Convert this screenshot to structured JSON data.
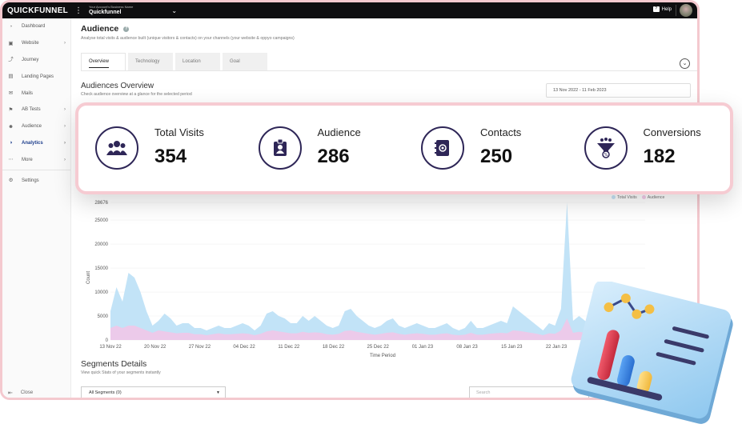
{
  "topbar": {
    "brand": "QUICKFUNNEL",
    "account_label": "Your Account's Business Name",
    "account_name": "Quickfunnel",
    "help_label": "Help"
  },
  "sidebar": {
    "items": [
      {
        "label": "Dashboard",
        "icon": "dashboard-icon",
        "chevron": false
      },
      {
        "label": "Website",
        "icon": "website-icon",
        "chevron": true
      },
      {
        "label": "Journey",
        "icon": "journey-icon",
        "chevron": false
      },
      {
        "label": "Landing Pages",
        "icon": "landing-pages-icon",
        "chevron": false
      },
      {
        "label": "Mails",
        "icon": "mail-icon",
        "chevron": false
      },
      {
        "label": "AB Tests",
        "icon": "ab-tests-icon",
        "chevron": true
      },
      {
        "label": "Audience",
        "icon": "audience-icon",
        "chevron": true
      },
      {
        "label": "Analytics",
        "icon": "analytics-icon",
        "chevron": true,
        "active": true
      },
      {
        "label": "More",
        "icon": "more-icon",
        "chevron": true
      },
      {
        "label": "Settings",
        "icon": "settings-icon",
        "chevron": false
      }
    ],
    "close_label": "Close"
  },
  "header": {
    "title": "Audience",
    "subtitle": "Analyse total visits & audience built (unique visitors & contacts) on your channels (your website & oppyo campaigns)"
  },
  "tabs": [
    "Overview",
    "Technology",
    "Location",
    "Goal"
  ],
  "overview": {
    "title": "Audiences Overview",
    "subtitle": "Check audience overview at a glance for the selected period",
    "date_range": "13 Nov 2022 - 11 Feb 2023"
  },
  "kpis": [
    {
      "label": "Total Visits",
      "value": "354",
      "icon": "visitors-group-icon"
    },
    {
      "label": "Audience",
      "value": "286",
      "icon": "id-badge-icon"
    },
    {
      "label": "Contacts",
      "value": "250",
      "icon": "contact-book-icon"
    },
    {
      "label": "Conversions",
      "value": "182",
      "icon": "funnel-icon"
    }
  ],
  "chart_data": {
    "type": "area",
    "ylabel": "Count",
    "xlabel": "Time Period",
    "ylim": [
      0,
      28676
    ],
    "y_ticks": [
      "28676",
      "25000",
      "20000",
      "15000",
      "10000",
      "5000",
      "0"
    ],
    "x_ticks": [
      "13 Nov 22",
      "20 Nov 22",
      "27 Nov 22",
      "04 Dec 22",
      "11 Dec 22",
      "18 Dec 22",
      "25 Dec 22",
      "01 Jan 23",
      "08 Jan 23",
      "15 Jan 23",
      "22 Jan 23"
    ],
    "legend": [
      "Total Visits",
      "Audience"
    ],
    "colors": {
      "Total Visits": "#bfe1f7",
      "Audience": "#f1c6e8"
    },
    "series": [
      {
        "name": "Total Visits",
        "values": [
          6000,
          11000,
          8000,
          14000,
          13000,
          10000,
          6000,
          3000,
          4000,
          5500,
          4500,
          3000,
          3500,
          3500,
          2500,
          2500,
          2000,
          2500,
          3000,
          2500,
          2500,
          3000,
          3500,
          3000,
          2000,
          3000,
          5500,
          6000,
          5000,
          4500,
          3500,
          3500,
          5000,
          4000,
          5000,
          4000,
          3000,
          2500,
          3000,
          6000,
          6500,
          5000,
          4000,
          3000,
          2500,
          3000,
          4000,
          4500,
          3000,
          2500,
          3000,
          3500,
          3000,
          2500,
          2500,
          3000,
          3500,
          2500,
          2000,
          2500,
          4000,
          2500,
          2500,
          3000,
          3500,
          4000,
          3500,
          7000,
          6000,
          5000,
          4000,
          3000,
          2000,
          3500,
          3000,
          6500,
          28676,
          4000,
          5000,
          4000,
          3000,
          2500,
          2500,
          3000,
          2500,
          2500,
          2500,
          2000,
          2000,
          2500
        ]
      },
      {
        "name": "Audience",
        "values": [
          2500,
          3000,
          2500,
          3000,
          3000,
          2500,
          2000,
          1500,
          2000,
          1800,
          1600,
          1400,
          1500,
          1500,
          1200,
          1200,
          1000,
          1200,
          1400,
          1200,
          1200,
          1300,
          1400,
          1300,
          1000,
          1300,
          1800,
          2000,
          1800,
          1600,
          1400,
          1400,
          1700,
          1500,
          1600,
          1500,
          1200,
          1100,
          1300,
          1900,
          2000,
          1700,
          1500,
          1300,
          1100,
          1300,
          1500,
          1600,
          1300,
          1100,
          1300,
          1400,
          1300,
          1100,
          1100,
          1300,
          1400,
          1100,
          1000,
          1100,
          1500,
          1100,
          1100,
          1300,
          1400,
          1500,
          1400,
          2000,
          1900,
          1700,
          1500,
          1300,
          1000,
          1400,
          1300,
          2000,
          4500,
          1500,
          1700,
          1500,
          1300,
          1100,
          1100,
          1300,
          1100,
          1100,
          1100,
          1000,
          1000,
          1100
        ]
      }
    ]
  },
  "segments": {
    "title": "Segments Details",
    "subtitle": "View quick Stats of your segments instantly",
    "select_value": "All Segments (0)",
    "search_placeholder": "Search"
  }
}
